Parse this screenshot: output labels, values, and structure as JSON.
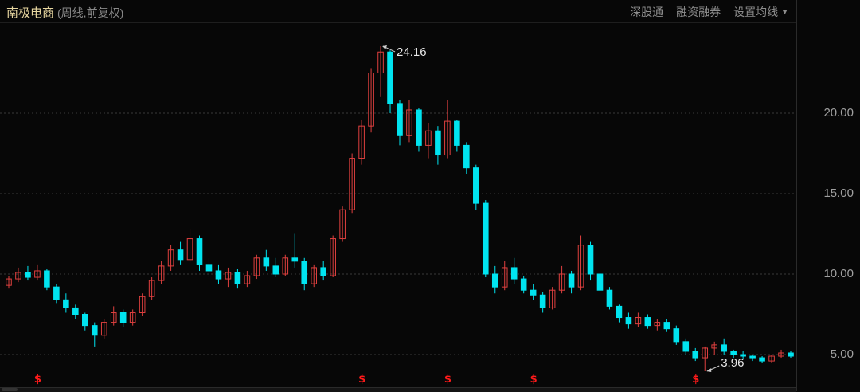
{
  "header": {
    "stock_name": "南极电商",
    "mode": "(周线,前复权)",
    "tools": [
      "深股通",
      "融资融券",
      "设置均线"
    ]
  },
  "colors": {
    "up": "#e0403f",
    "down": "#00e4f0",
    "grid": "#3a3a3a",
    "marker": "#ff1a1a"
  },
  "chart_data": {
    "type": "candlestick",
    "ylim": [
      3.5,
      25.5
    ],
    "y_ticks": [
      "5.00",
      "10.00",
      "15.00",
      "20.00"
    ],
    "y_tick_values": [
      5,
      10,
      15,
      20
    ],
    "grid": "horizontal-dotted",
    "candle_format": [
      "open",
      "high",
      "low",
      "close"
    ],
    "candles": [
      [
        9.3,
        9.9,
        9.1,
        9.7
      ],
      [
        9.7,
        10.4,
        9.5,
        10.1
      ],
      [
        10.1,
        10.5,
        9.6,
        9.8
      ],
      [
        9.8,
        10.6,
        9.6,
        10.2
      ],
      [
        10.2,
        10.3,
        9.0,
        9.2
      ],
      [
        9.2,
        9.4,
        8.2,
        8.4
      ],
      [
        8.4,
        8.8,
        7.6,
        7.9
      ],
      [
        7.9,
        8.1,
        7.2,
        7.5
      ],
      [
        7.5,
        7.6,
        6.5,
        6.8
      ],
      [
        6.8,
        7.0,
        5.5,
        6.2
      ],
      [
        6.2,
        7.2,
        6.0,
        7.0
      ],
      [
        7.0,
        8.0,
        6.8,
        7.6
      ],
      [
        7.6,
        7.8,
        6.7,
        7.0
      ],
      [
        7.0,
        7.8,
        6.8,
        7.6
      ],
      [
        7.6,
        8.8,
        7.4,
        8.6
      ],
      [
        8.6,
        9.8,
        8.4,
        9.6
      ],
      [
        9.6,
        10.8,
        9.4,
        10.5
      ],
      [
        10.5,
        11.8,
        10.2,
        11.5
      ],
      [
        11.5,
        12.0,
        10.6,
        10.9
      ],
      [
        10.9,
        12.8,
        10.7,
        12.2
      ],
      [
        12.2,
        12.4,
        10.2,
        10.6
      ],
      [
        10.6,
        11.0,
        9.8,
        10.2
      ],
      [
        10.2,
        10.6,
        9.4,
        9.7
      ],
      [
        9.7,
        10.4,
        9.2,
        10.1
      ],
      [
        10.1,
        10.3,
        9.1,
        9.4
      ],
      [
        9.4,
        10.2,
        9.2,
        9.9
      ],
      [
        9.9,
        11.2,
        9.7,
        11.0
      ],
      [
        11.0,
        11.5,
        10.2,
        10.5
      ],
      [
        10.5,
        11.0,
        9.8,
        10.0
      ],
      [
        10.0,
        11.2,
        9.9,
        11.0
      ],
      [
        11.0,
        12.5,
        10.4,
        10.8
      ],
      [
        10.8,
        11.0,
        9.0,
        9.4
      ],
      [
        9.4,
        10.6,
        9.2,
        10.4
      ],
      [
        10.4,
        10.8,
        9.6,
        9.9
      ],
      [
        9.9,
        12.4,
        9.8,
        12.2
      ],
      [
        12.2,
        14.2,
        12.0,
        14.0
      ],
      [
        14.0,
        17.5,
        13.8,
        17.2
      ],
      [
        17.2,
        19.6,
        16.8,
        19.2
      ],
      [
        19.2,
        22.8,
        18.8,
        22.5
      ],
      [
        22.5,
        24.16,
        21.0,
        23.8
      ],
      [
        23.8,
        23.9,
        20.0,
        20.6
      ],
      [
        20.6,
        20.8,
        18.0,
        18.6
      ],
      [
        18.6,
        20.8,
        18.2,
        20.2
      ],
      [
        20.2,
        20.3,
        17.6,
        18.0
      ],
      [
        18.0,
        19.4,
        17.2,
        18.9
      ],
      [
        18.9,
        19.2,
        16.8,
        17.4
      ],
      [
        17.4,
        20.8,
        17.2,
        19.5
      ],
      [
        19.5,
        19.6,
        17.6,
        18.0
      ],
      [
        18.0,
        18.2,
        16.2,
        16.6
      ],
      [
        16.6,
        16.8,
        14.0,
        14.4
      ],
      [
        14.4,
        14.6,
        9.8,
        10.0
      ],
      [
        10.0,
        10.5,
        8.8,
        9.2
      ],
      [
        9.2,
        10.8,
        9.0,
        10.4
      ],
      [
        10.4,
        11.0,
        9.4,
        9.7
      ],
      [
        9.7,
        9.9,
        8.8,
        9.0
      ],
      [
        9.0,
        9.4,
        8.4,
        8.7
      ],
      [
        8.7,
        8.9,
        7.6,
        7.9
      ],
      [
        7.9,
        9.2,
        7.8,
        9.0
      ],
      [
        9.0,
        10.5,
        8.8,
        10.0
      ],
      [
        10.0,
        10.2,
        8.8,
        9.2
      ],
      [
        9.2,
        12.4,
        9.0,
        11.8
      ],
      [
        11.8,
        12.0,
        9.6,
        10.0
      ],
      [
        10.0,
        10.2,
        8.8,
        9.0
      ],
      [
        9.0,
        9.2,
        7.8,
        8.0
      ],
      [
        8.0,
        8.1,
        7.0,
        7.3
      ],
      [
        7.3,
        7.6,
        6.6,
        6.9
      ],
      [
        6.9,
        7.6,
        6.7,
        7.3
      ],
      [
        7.3,
        7.5,
        6.6,
        6.8
      ],
      [
        6.8,
        7.2,
        6.5,
        7.0
      ],
      [
        7.0,
        7.2,
        6.4,
        6.6
      ],
      [
        6.6,
        6.8,
        5.6,
        5.8
      ],
      [
        5.8,
        6.0,
        5.0,
        5.2
      ],
      [
        5.2,
        5.4,
        4.6,
        4.8
      ],
      [
        4.8,
        5.5,
        3.96,
        5.4
      ],
      [
        5.4,
        5.8,
        5.0,
        5.6
      ],
      [
        5.6,
        6.0,
        5.0,
        5.2
      ],
      [
        5.2,
        5.3,
        4.8,
        5.0
      ],
      [
        5.0,
        5.2,
        4.7,
        4.9
      ],
      [
        4.9,
        5.0,
        4.6,
        4.8
      ],
      [
        4.8,
        4.9,
        4.5,
        4.6
      ],
      [
        4.6,
        5.0,
        4.5,
        4.9
      ],
      [
        4.9,
        5.3,
        4.8,
        5.1
      ],
      [
        5.1,
        5.2,
        4.8,
        4.9
      ]
    ],
    "annotations": [
      {
        "label": "24.16",
        "value": 24.16,
        "type": "high"
      },
      {
        "label": "3.96",
        "value": 3.96,
        "type": "low"
      }
    ],
    "dividend_marker_label": "$",
    "dividend_marker_candles": [
      3,
      37,
      46,
      55,
      72
    ]
  }
}
